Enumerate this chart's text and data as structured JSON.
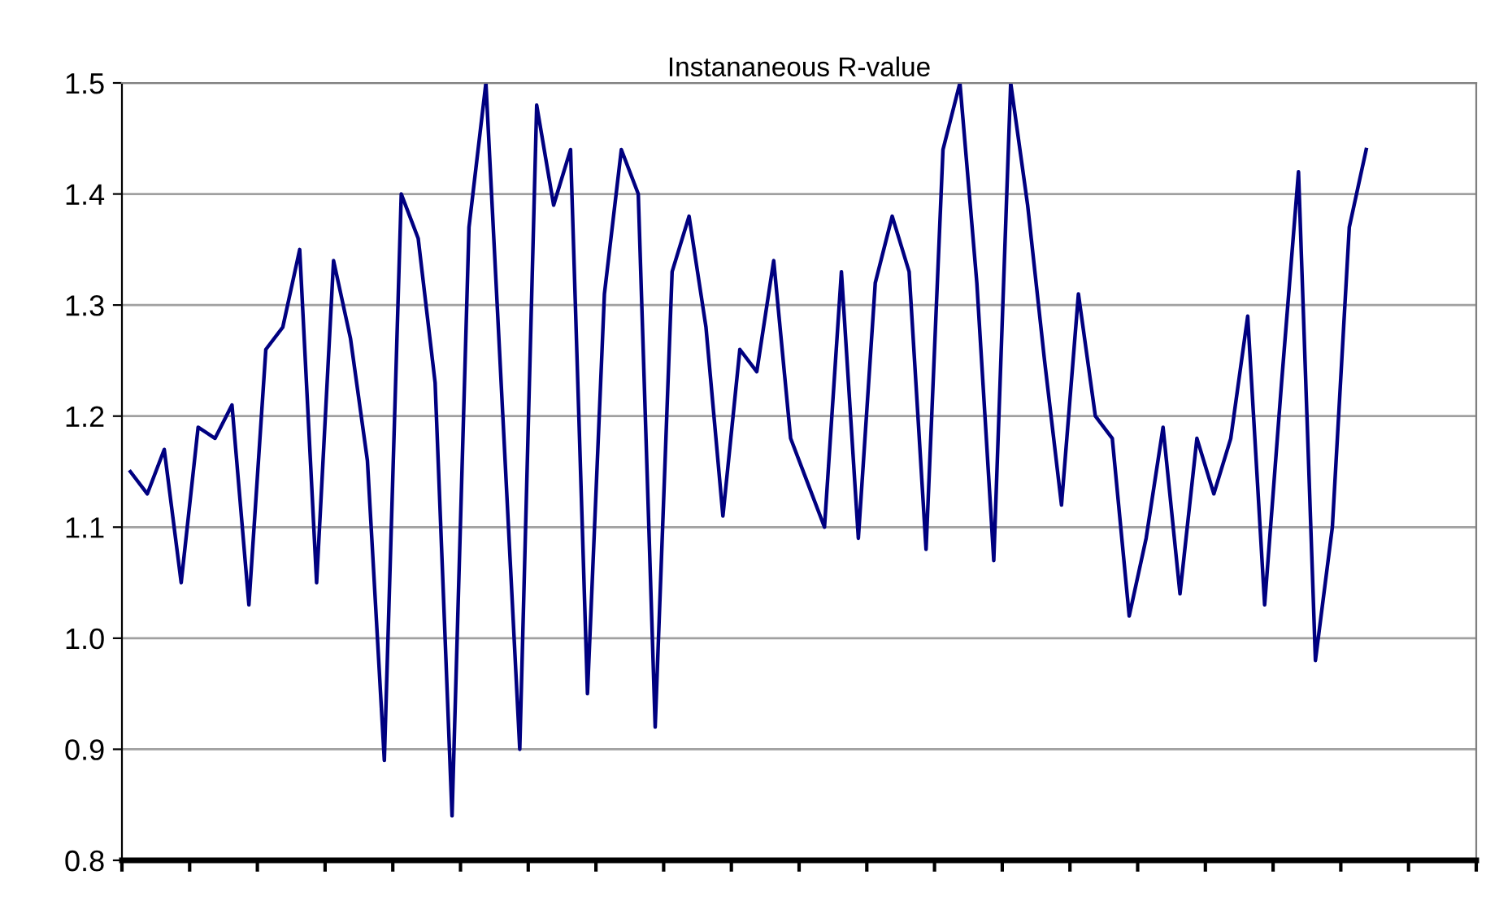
{
  "chart_data": {
    "type": "line",
    "title": "Instananeous R-value",
    "categories": [
      null,
      null,
      null,
      null,
      null,
      null,
      null,
      null,
      null,
      null,
      null,
      null,
      null,
      null,
      null,
      null,
      null,
      null,
      null,
      null,
      null,
      null,
      null,
      null,
      null,
      null,
      null,
      null,
      null,
      null,
      null,
      null,
      null,
      null,
      null,
      null,
      null,
      null,
      null,
      null,
      null,
      null,
      null,
      null,
      null,
      null,
      null,
      null,
      null,
      null,
      null,
      null,
      null,
      null,
      null,
      null,
      null,
      null,
      null,
      null,
      null,
      null,
      null,
      null,
      null,
      null,
      null,
      null,
      null,
      null,
      null,
      null,
      null,
      null,
      null,
      null,
      null,
      null,
      null,
      null
    ],
    "series": [
      {
        "color": "#000080",
        "values": [
          1.15,
          1.13,
          1.17,
          1.05,
          1.19,
          1.18,
          1.21,
          1.03,
          1.26,
          1.28,
          1.35,
          1.05,
          1.34,
          1.27,
          1.16,
          0.89,
          1.4,
          1.36,
          1.23,
          0.84,
          1.37,
          1.5,
          1.2,
          0.9,
          1.48,
          1.39,
          1.44,
          0.95,
          1.31,
          1.44,
          1.4,
          0.92,
          1.33,
          1.38,
          1.28,
          1.11,
          1.26,
          1.24,
          1.34,
          1.18,
          1.14,
          1.1,
          1.33,
          1.09,
          1.32,
          1.38,
          1.33,
          1.08,
          1.44,
          1.5,
          1.32,
          1.07,
          1.5,
          1.39,
          1.25,
          1.12,
          1.31,
          1.2,
          1.18,
          1.02,
          1.09,
          1.19,
          1.04,
          1.18,
          1.13,
          1.18,
          1.29,
          1.03,
          1.23,
          1.42,
          0.98,
          1.1,
          1.37,
          1.44,
          null,
          null,
          null,
          null,
          null,
          null
        ]
      }
    ],
    "ylim": [
      0.8,
      1.5
    ],
    "yticks": [
      {
        "value": 0.8,
        "label": "0.8"
      },
      {
        "value": 0.9,
        "label": "0.9"
      },
      {
        "value": 1.0,
        "label": "1.0"
      },
      {
        "value": 1.1,
        "label": "1.1"
      },
      {
        "value": 1.2,
        "label": "1.2"
      },
      {
        "value": 1.3,
        "label": "1.3"
      },
      {
        "value": 1.4,
        "label": "1.4"
      },
      {
        "value": 1.5,
        "label": "1.5"
      }
    ],
    "grid": "y",
    "tick_labels": "y",
    "marker": "none",
    "line_style": "solid"
  }
}
